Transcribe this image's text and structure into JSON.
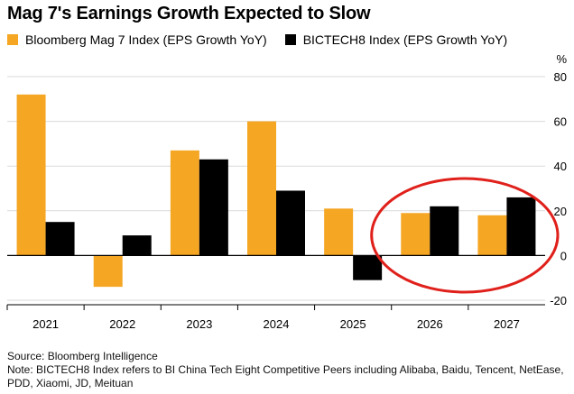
{
  "title": "Mag 7's Earnings Growth Expected to Slow",
  "legend": {
    "series1": "Bloomberg Mag 7 Index (EPS Growth YoY)",
    "series2": "BICTECH8 Index (EPS Growth YoY)"
  },
  "colors": {
    "series1": "#F5A623",
    "series2": "#000000",
    "highlight": "#E0201B",
    "grid": "#D9D9D9",
    "axis": "#000000"
  },
  "chart_data": {
    "type": "bar",
    "title": "Mag 7's Earnings Growth Expected to Slow",
    "xlabel": "",
    "ylabel": "%",
    "categories": [
      "2021",
      "2022",
      "2023",
      "2024",
      "2025",
      "2026",
      "2027"
    ],
    "series": [
      {
        "name": "Bloomberg Mag 7 Index (EPS Growth YoY)",
        "values": [
          72,
          -14,
          47,
          60,
          21,
          19,
          18
        ]
      },
      {
        "name": "BICTECH8 Index (EPS Growth YoY)",
        "values": [
          15,
          9,
          43,
          29,
          -11,
          22,
          26
        ]
      }
    ],
    "ylim": [
      -20,
      80
    ],
    "yticks": [
      80,
      60,
      40,
      20,
      0,
      -20
    ],
    "unit_label": "%",
    "grid": true,
    "legend_position": "top-left",
    "highlighted_categories": [
      "2026",
      "2027"
    ]
  },
  "footer": {
    "source": "Source: Bloomberg Intelligence",
    "note": "Note: BICTECH8 Index refers to BI China Tech Eight Competitive Peers including Alibaba, Baidu, Tencent, NetEase, PDD, Xiaomi, JD, Meituan"
  }
}
